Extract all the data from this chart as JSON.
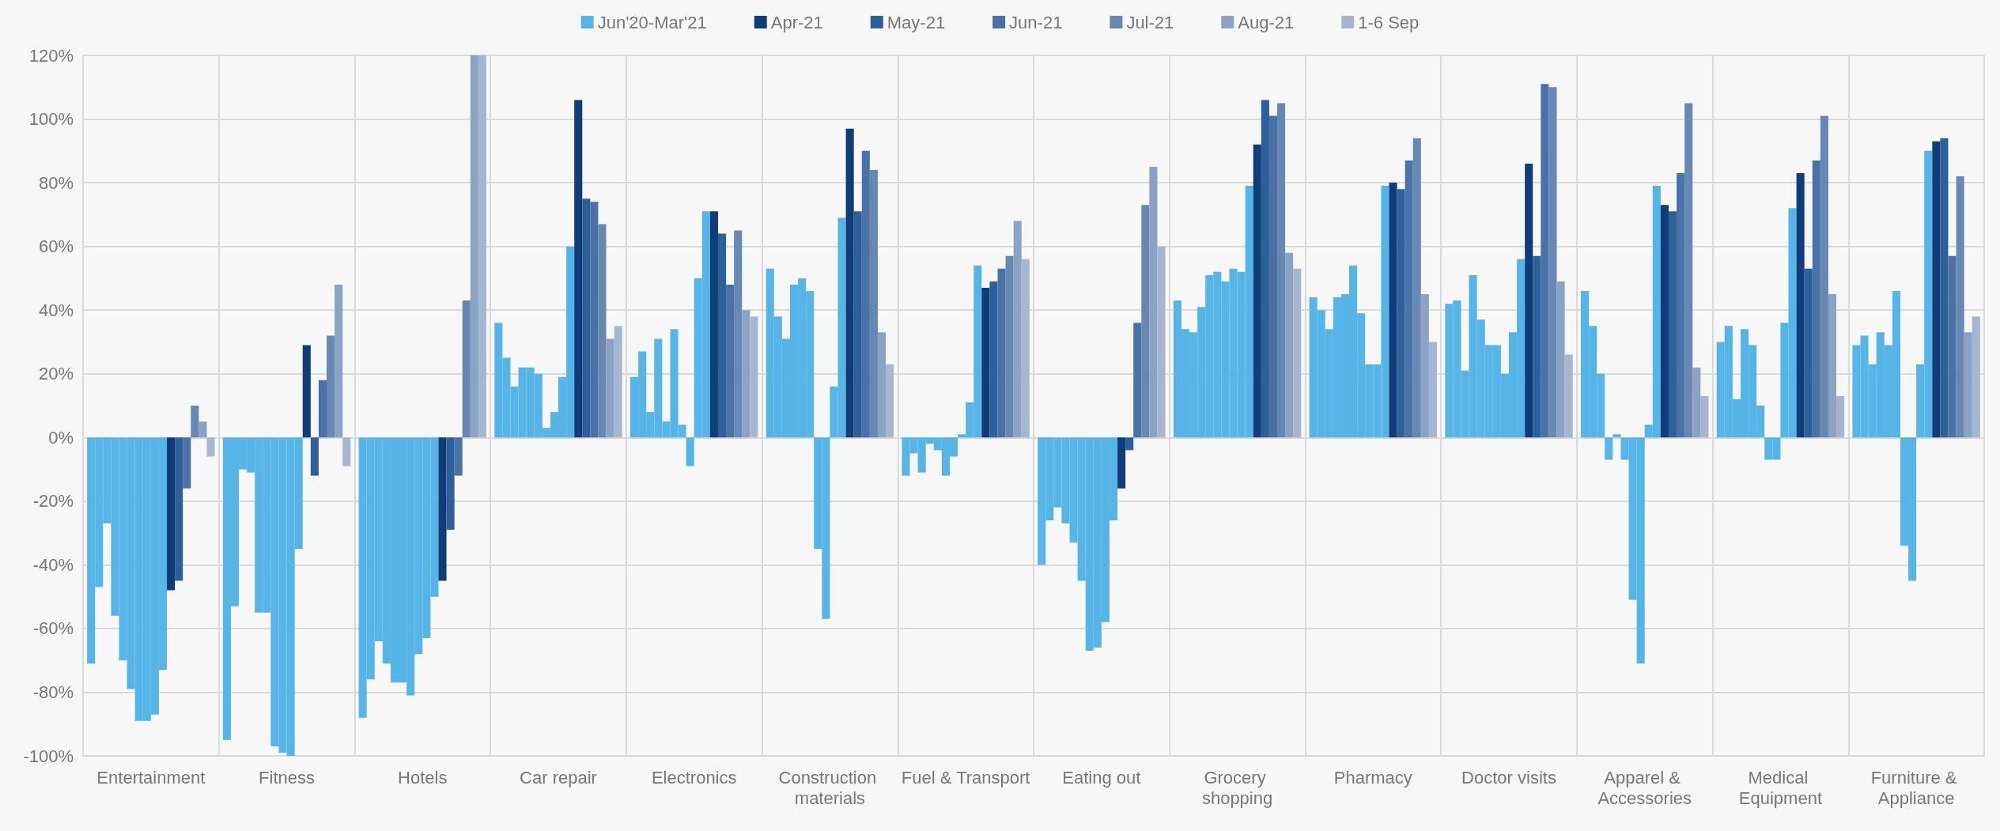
{
  "chart_data": {
    "type": "bar",
    "categories": [
      "Entertainment",
      "Fitness",
      "Hotels",
      "Car repair",
      "Electronics",
      "Construction materials",
      "Fuel & Transport",
      "Eating out",
      "Grocery shopping",
      "Pharmacy",
      "Doctor visits",
      "Apparel & Accessories",
      "Medical Equipment",
      "Furniture & Appliance"
    ],
    "series": [
      {
        "name": "Jun'20-Mar'21",
        "color": "#56b4e6",
        "values": [
          -71,
          -95,
          -88,
          36,
          19,
          53,
          -12,
          -40,
          43,
          44,
          42,
          46,
          30,
          29
        ]
      },
      {
        "color": "#56b4e6",
        "values": [
          -47,
          -53,
          -76,
          25,
          27,
          38,
          -5,
          -26,
          34,
          40,
          43,
          35,
          35,
          32
        ]
      },
      {
        "color": "#56b4e6",
        "values": [
          -27,
          -10,
          -64,
          16,
          8,
          31,
          -11,
          -22,
          33,
          34,
          21,
          20,
          12,
          23
        ]
      },
      {
        "color": "#56b4e6",
        "values": [
          -56,
          -11,
          -71,
          22,
          31,
          48,
          -2,
          -27,
          41,
          44,
          51,
          -7,
          34,
          33
        ]
      },
      {
        "color": "#56b4e6",
        "values": [
          -70,
          -55,
          -77,
          22,
          5,
          50,
          -4,
          -33,
          51,
          45,
          37,
          1,
          29,
          29
        ]
      },
      {
        "color": "#56b4e6",
        "values": [
          -79,
          -55,
          -77,
          20,
          34,
          46,
          -12,
          -45,
          52,
          54,
          29,
          -7,
          10,
          46
        ]
      },
      {
        "color": "#56b4e6",
        "values": [
          -89,
          -97,
          -81,
          3,
          4,
          -35,
          -6,
          -67,
          49,
          39,
          29,
          -51,
          -7,
          -34
        ]
      },
      {
        "color": "#56b4e6",
        "values": [
          -89,
          -99,
          -68,
          8,
          -9,
          -57,
          1,
          -66,
          53,
          23,
          20,
          -71,
          -7,
          -45
        ]
      },
      {
        "color": "#56b4e6",
        "values": [
          -87,
          -100,
          -63,
          19,
          50,
          16,
          11,
          -58,
          52,
          23,
          33,
          4,
          36,
          23
        ]
      },
      {
        "color": "#56b4e6",
        "values": [
          -73,
          -35,
          -50,
          60,
          71,
          69,
          54,
          -26,
          79,
          79,
          56,
          79,
          72,
          90
        ]
      },
      {
        "name": "Apr-21",
        "color": "#0f3d7a",
        "values": [
          -48,
          29,
          -45,
          106,
          71,
          97,
          47,
          -16,
          92,
          80,
          86,
          73,
          83,
          93
        ]
      },
      {
        "name": "May-21",
        "color": "#2d5f99",
        "values": [
          -45,
          -12,
          -29,
          75,
          64,
          71,
          49,
          -4,
          106,
          78,
          57,
          71,
          53,
          94
        ]
      },
      {
        "name": "Jun-21",
        "color": "#4a72a6",
        "values": [
          -16,
          18,
          -12,
          74,
          48,
          90,
          53,
          36,
          101,
          87,
          111,
          83,
          87,
          57
        ]
      },
      {
        "name": "Jul-21",
        "color": "#6688b3",
        "values": [
          10,
          32,
          43,
          67,
          65,
          84,
          57,
          73,
          105,
          94,
          110,
          105,
          101,
          82
        ]
      },
      {
        "name": "Aug-21",
        "color": "#8aa2c4",
        "values": [
          5,
          48,
          120,
          31,
          40,
          33,
          68,
          85,
          58,
          45,
          49,
          22,
          45,
          33
        ]
      },
      {
        "name": "1-6 Sep",
        "color": "#a6b6d1",
        "values": [
          -6,
          -9,
          120,
          35,
          38,
          23,
          56,
          60,
          53,
          30,
          26,
          13,
          13,
          38
        ]
      }
    ],
    "ylim": [
      -100,
      120
    ],
    "yticks": [
      {
        "value": -100,
        "label": "-100%"
      },
      {
        "value": -80,
        "label": "-80%"
      },
      {
        "value": -60,
        "label": "-60%"
      },
      {
        "value": -40,
        "label": "-40%"
      },
      {
        "value": -20,
        "label": "-20%"
      },
      {
        "value": 0,
        "label": "0%"
      },
      {
        "value": 20,
        "label": "20%"
      },
      {
        "value": 40,
        "label": "40%"
      },
      {
        "value": 60,
        "label": "60%"
      },
      {
        "value": 80,
        "label": "80%"
      },
      {
        "value": 100,
        "label": "100%"
      },
      {
        "value": 120,
        "label": "120%"
      }
    ],
    "grid": true,
    "legend": "top"
  }
}
